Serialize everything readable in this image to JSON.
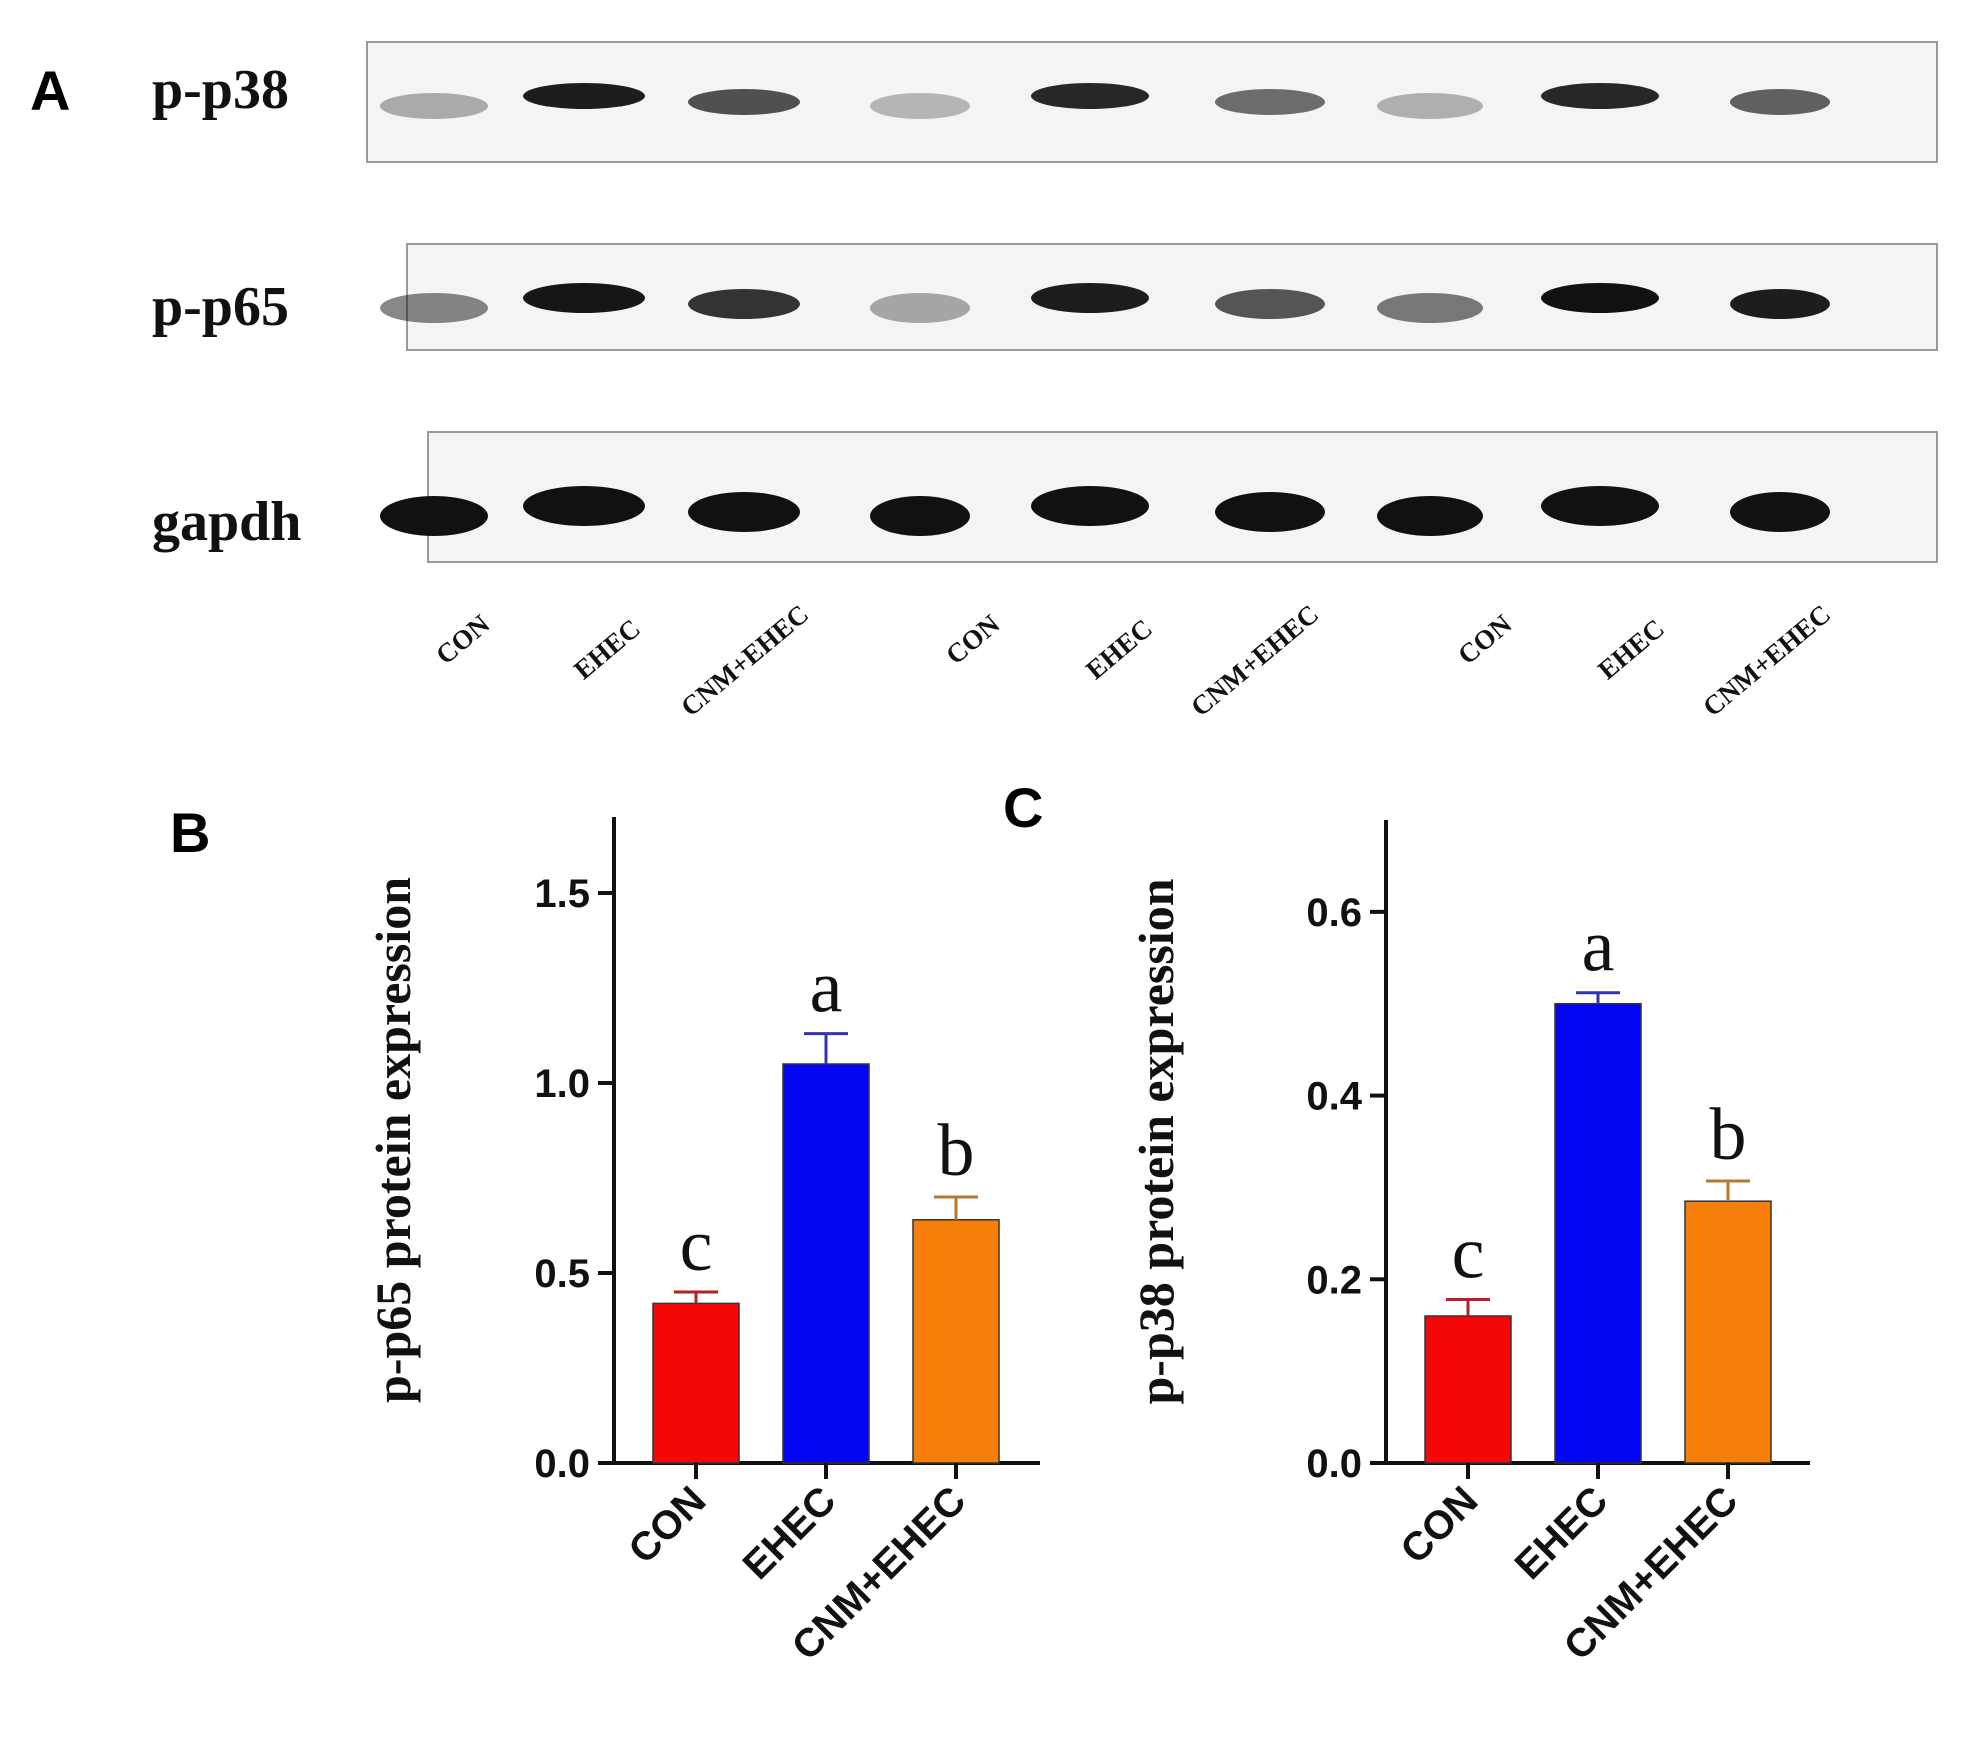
{
  "panel_letters": {
    "a": "A",
    "b": "B",
    "c": "C"
  },
  "blot": {
    "rows": [
      {
        "label": "p-p38",
        "intensity": [
          0.32,
          0.95,
          0.72,
          0.28,
          0.9,
          0.6,
          0.3,
          0.9,
          0.65
        ]
      },
      {
        "label": "p-p65",
        "intensity": [
          0.5,
          0.98,
          0.85,
          0.35,
          0.95,
          0.7,
          0.55,
          1.0,
          0.95
        ]
      },
      {
        "label": "gapdh",
        "intensity": [
          1,
          1,
          1,
          1,
          1,
          1,
          1,
          1,
          1
        ]
      }
    ],
    "lanes": [
      "CON",
      "EHEC",
      "CNM+EHEC",
      "CON",
      "EHEC",
      "CNM+EHEC",
      "CON",
      "EHEC",
      "CNM+EHEC"
    ],
    "band_color": "#111111"
  },
  "chart_data": [
    {
      "panel": "B",
      "type": "bar",
      "categories": [
        "CON",
        "EHEC",
        "CNM+EHEC"
      ],
      "values": [
        0.42,
        1.05,
        0.64
      ],
      "errors": [
        0.03,
        0.08,
        0.06
      ],
      "significance": [
        "c",
        "a",
        "b"
      ],
      "colors": [
        "#f50707",
        "#0505f5",
        "#f77f09"
      ],
      "error_colors": [
        "#b22222",
        "#3333aa",
        "#b8762e"
      ],
      "ylabel": "p-p65 protein expression",
      "ylim": [
        0,
        1.7
      ],
      "yticks": [
        0.0,
        0.5,
        1.0,
        1.5
      ],
      "ytick_labels": [
        "0.0",
        "0.5",
        "1.0",
        "1.5"
      ]
    },
    {
      "panel": "C",
      "type": "bar",
      "categories": [
        "CON",
        "EHEC",
        "CNM+EHEC"
      ],
      "values": [
        0.16,
        0.5,
        0.285
      ],
      "errors": [
        0.018,
        0.012,
        0.022
      ],
      "significance": [
        "c",
        "a",
        "b"
      ],
      "colors": [
        "#f50707",
        "#0505f5",
        "#f77f09"
      ],
      "error_colors": [
        "#b22222",
        "#3333aa",
        "#b8762e"
      ],
      "ylabel": "p-p38 protein expression",
      "ylim": [
        0,
        0.7
      ],
      "yticks": [
        0.0,
        0.2,
        0.4,
        0.6
      ],
      "ytick_labels": [
        "0.0",
        "0.2",
        "0.4",
        "0.6"
      ]
    }
  ]
}
